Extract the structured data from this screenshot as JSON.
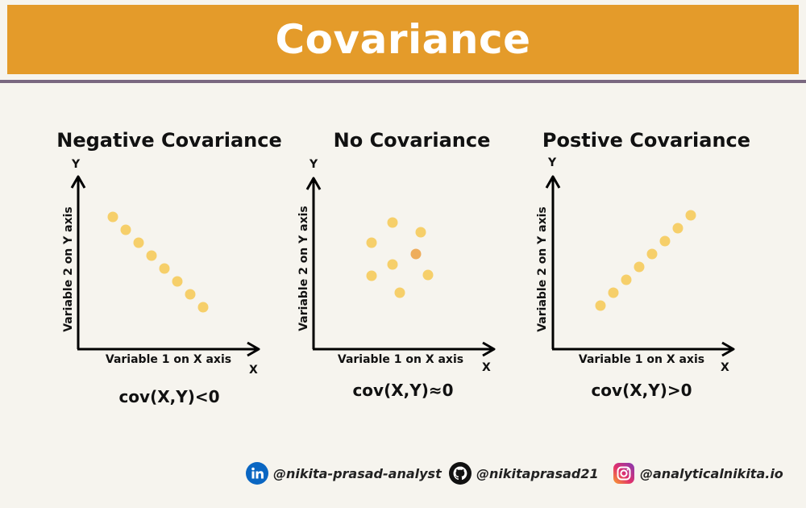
{
  "title": "Covariance",
  "colors": {
    "banner": "#e49b2a",
    "divider": "#7a6880",
    "dot": "#f6cf6a",
    "dot_accent": "#eead5c",
    "background": "#f6f4ee"
  },
  "panels": [
    {
      "title": "Negative Covariance",
      "x_axis_label": "Variable 1 on X axis",
      "y_axis_label": "Variable 2 on Y axis",
      "x_letter": "X",
      "y_letter": "Y",
      "formula": "cov(X,Y)<0"
    },
    {
      "title": "No Covariance",
      "x_axis_label": "Variable 1 on X axis",
      "y_axis_label": "Variable 2 on Y axis",
      "x_letter": "X",
      "y_letter": "Y",
      "formula": "cov(X,Y)≈0"
    },
    {
      "title": "Postive Covariance",
      "x_axis_label": "Variable 1 on X axis",
      "y_axis_label": "Variable 2 on Y axis",
      "x_letter": "X",
      "y_letter": "Y",
      "formula": "cov(X,Y)>0"
    }
  ],
  "footer": {
    "linkedin": {
      "icon": "linkedin-icon",
      "handle": "@nikita-prasad-analyst"
    },
    "github": {
      "icon": "github-icon",
      "handle": "@nikitaprasad21"
    },
    "instagram": {
      "icon": "instagram-icon",
      "handle": "@analyticalnikita.io"
    }
  }
}
